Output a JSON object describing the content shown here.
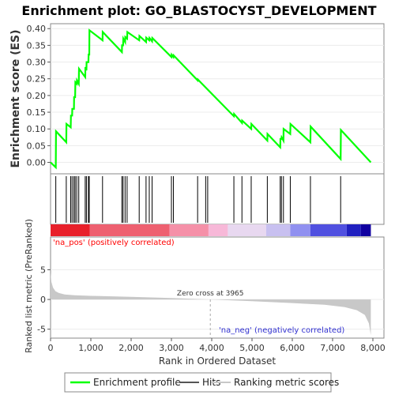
{
  "chart_data": {
    "type": "line",
    "title": "Enrichment plot: GO_BLASTOCYST_DEVELOPMENT",
    "xlabel": "Rank in Ordered Dataset",
    "es_panel": {
      "ylabel": "Enrichment score (ES)",
      "ylim": [
        -0.02,
        0.41
      ],
      "yticks": [
        0.0,
        0.05,
        0.1,
        0.15,
        0.2,
        0.25,
        0.3,
        0.35,
        0.4
      ],
      "ytick_labels": [
        "0.00",
        "0.05",
        "0.10",
        "0.15",
        "0.20",
        "0.25",
        "0.30",
        "0.35",
        "0.40"
      ],
      "series": [
        {
          "name": "Enrichment profile",
          "color": "#00ff00",
          "x": [
            0,
            130,
            135,
            390,
            395,
            500,
            505,
            535,
            540,
            580,
            585,
            610,
            615,
            650,
            655,
            700,
            705,
            860,
            865,
            890,
            895,
            940,
            945,
            960,
            965,
            1290,
            1295,
            1770,
            1775,
            1800,
            1805,
            1850,
            1855,
            1900,
            1905,
            2200,
            2205,
            2370,
            2375,
            2450,
            2455,
            2520,
            2525,
            3000,
            3005,
            3050,
            3055,
            3650,
            3655,
            4550,
            4555,
            4750,
            4755,
            4980,
            4985,
            5380,
            5385,
            5700,
            5705,
            5730,
            5735,
            5780,
            5785,
            5950,
            5955,
            6450,
            6455,
            7200,
            7205,
            7950
          ],
          "y": [
            0.0,
            -0.015,
            0.093,
            0.06,
            0.115,
            0.105,
            0.14,
            0.14,
            0.16,
            0.16,
            0.195,
            0.195,
            0.24,
            0.235,
            0.245,
            0.235,
            0.28,
            0.255,
            0.285,
            0.275,
            0.3,
            0.3,
            0.325,
            0.32,
            0.395,
            0.365,
            0.39,
            0.33,
            0.35,
            0.35,
            0.37,
            0.36,
            0.375,
            0.37,
            0.39,
            0.365,
            0.378,
            0.36,
            0.373,
            0.365,
            0.372,
            0.362,
            0.372,
            0.315,
            0.322,
            0.315,
            0.32,
            0.245,
            0.248,
            0.138,
            0.145,
            0.118,
            0.125,
            0.1,
            0.115,
            0.065,
            0.085,
            0.045,
            0.07,
            0.07,
            0.075,
            0.065,
            0.1,
            0.085,
            0.115,
            0.06,
            0.107,
            0.01,
            0.097,
            0.0
          ]
        }
      ]
    },
    "hits_panel": {
      "legend_name": "Hits",
      "hit_ranks": [
        130,
        390,
        500,
        535,
        580,
        610,
        650,
        700,
        860,
        890,
        940,
        960,
        1290,
        1770,
        1800,
        1850,
        1900,
        2200,
        2370,
        2450,
        2520,
        3000,
        3050,
        3650,
        3850,
        3900,
        4550,
        4750,
        4980,
        5380,
        5700,
        5730,
        5780,
        5950,
        6450,
        7200
      ]
    },
    "ranked_metric_panel": {
      "ylabel": "Ranked list metric (PreRanked)",
      "legend_name": "Ranking metric scores",
      "ylim": [
        -6.5,
        10.5
      ],
      "yticks": [
        -5,
        0,
        5
      ],
      "ytick_labels": [
        "-5",
        "0",
        "5"
      ],
      "zero_cross_label": "Zero cross at 3965",
      "zero_cross_rank": 3965,
      "pos_label": "'na_pos' (positively correlated)",
      "neg_label": "'na_neg' (negatively correlated)",
      "pos_color": "#ff0000",
      "neg_color": "#0000ff",
      "heat_colors": [
        "#e8202a",
        "#ee6070",
        "#f590a8",
        "#f7b8d8",
        "#e8d8f0",
        "#c8c0f0",
        "#9090f0",
        "#5050e0",
        "#2020c0",
        "#1000a0"
      ],
      "metric_points": {
        "rank": [
          0,
          20,
          60,
          120,
          200,
          350,
          600,
          1000,
          2000,
          3000,
          3965,
          5000,
          6000,
          6800,
          7300,
          7600,
          7800,
          7900,
          7950
        ],
        "value": [
          4.6,
          3.0,
          2.0,
          1.4,
          1.1,
          0.85,
          0.7,
          0.6,
          0.45,
          0.25,
          0.0,
          -0.3,
          -0.6,
          -0.9,
          -1.3,
          -1.8,
          -2.6,
          -4.0,
          -6.0
        ]
      }
    },
    "xlim": [
      0,
      8000
    ],
    "xticks": [
      0,
      1000,
      2000,
      3000,
      4000,
      5000,
      6000,
      7000,
      8000
    ],
    "xtick_labels": [
      "0",
      "1,000",
      "2,000",
      "3,000",
      "4,000",
      "5,000",
      "6,000",
      "7,000",
      "8,000"
    ],
    "legend": [
      {
        "label": "Enrichment profile",
        "color": "#00ff00"
      },
      {
        "label": "Hits",
        "color": "#555555"
      },
      {
        "label": "Ranking metric scores",
        "color": "#c8c8c8"
      }
    ],
    "legend_position": "bottom"
  }
}
